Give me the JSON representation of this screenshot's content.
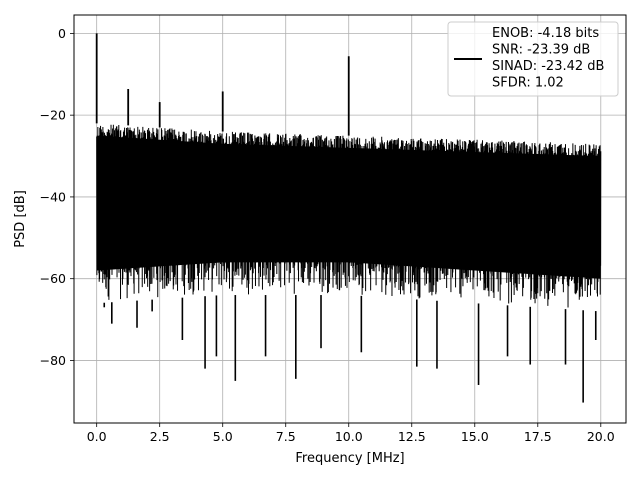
{
  "chart_data": {
    "type": "line",
    "xlabel": "Frequency [MHz]",
    "ylabel": "PSD [dB]",
    "xlim": [
      -0.9,
      21.0
    ],
    "ylim": [
      -95.3,
      4.5
    ],
    "grid": true,
    "x_ticks": [
      0.0,
      2.5,
      5.0,
      7.5,
      10.0,
      12.5,
      15.0,
      17.5,
      20.0
    ],
    "x_tick_labels": [
      "0.0",
      "2.5",
      "5.0",
      "7.5",
      "10.0",
      "12.5",
      "15.0",
      "17.5",
      "20.0"
    ],
    "y_ticks": [
      0,
      -20,
      -40,
      -60,
      -80
    ],
    "y_tick_labels": [
      "0",
      "−20",
      "−40",
      "−60",
      "−80"
    ],
    "legend": {
      "placement": "top-right",
      "lines": [
        "ENOB: -4.18 bits",
        "SNR: -23.39 dB",
        "SINAD: -23.42 dB",
        "SFDR: 1.02"
      ]
    },
    "series": [
      {
        "color": "#000000",
        "noise_envelope": {
          "x": [
            0.0,
            2.5,
            5.0,
            7.5,
            10.0,
            12.5,
            15.0,
            17.5,
            20.0
          ],
          "upper": [
            -22,
            -23,
            -24,
            -24.5,
            -25,
            -25.5,
            -26,
            -26.5,
            -27
          ],
          "lower": [
            -66,
            -65,
            -64,
            -64,
            -64,
            -65,
            -66,
            -67,
            -68
          ]
        },
        "spurs": [
          {
            "x": 0.0,
            "y": 0.0
          },
          {
            "x": 1.25,
            "y": -13.6
          },
          {
            "x": 2.5,
            "y": -16.8
          },
          {
            "x": 5.0,
            "y": -14.2
          },
          {
            "x": 10.0,
            "y": -5.6
          }
        ],
        "deep_nulls": [
          {
            "x": 0.3,
            "y": -67
          },
          {
            "x": 0.6,
            "y": -71
          },
          {
            "x": 1.6,
            "y": -72
          },
          {
            "x": 2.2,
            "y": -68
          },
          {
            "x": 3.4,
            "y": -75
          },
          {
            "x": 4.3,
            "y": -82
          },
          {
            "x": 4.75,
            "y": -79
          },
          {
            "x": 5.5,
            "y": -85
          },
          {
            "x": 6.7,
            "y": -79
          },
          {
            "x": 7.9,
            "y": -84.5
          },
          {
            "x": 8.9,
            "y": -77
          },
          {
            "x": 10.5,
            "y": -78
          },
          {
            "x": 12.7,
            "y": -81.5
          },
          {
            "x": 13.5,
            "y": -82
          },
          {
            "x": 15.15,
            "y": -86
          },
          {
            "x": 16.3,
            "y": -79
          },
          {
            "x": 17.2,
            "y": -81
          },
          {
            "x": 18.6,
            "y": -81
          },
          {
            "x": 19.3,
            "y": -90.3
          },
          {
            "x": 19.8,
            "y": -75
          }
        ]
      }
    ]
  }
}
